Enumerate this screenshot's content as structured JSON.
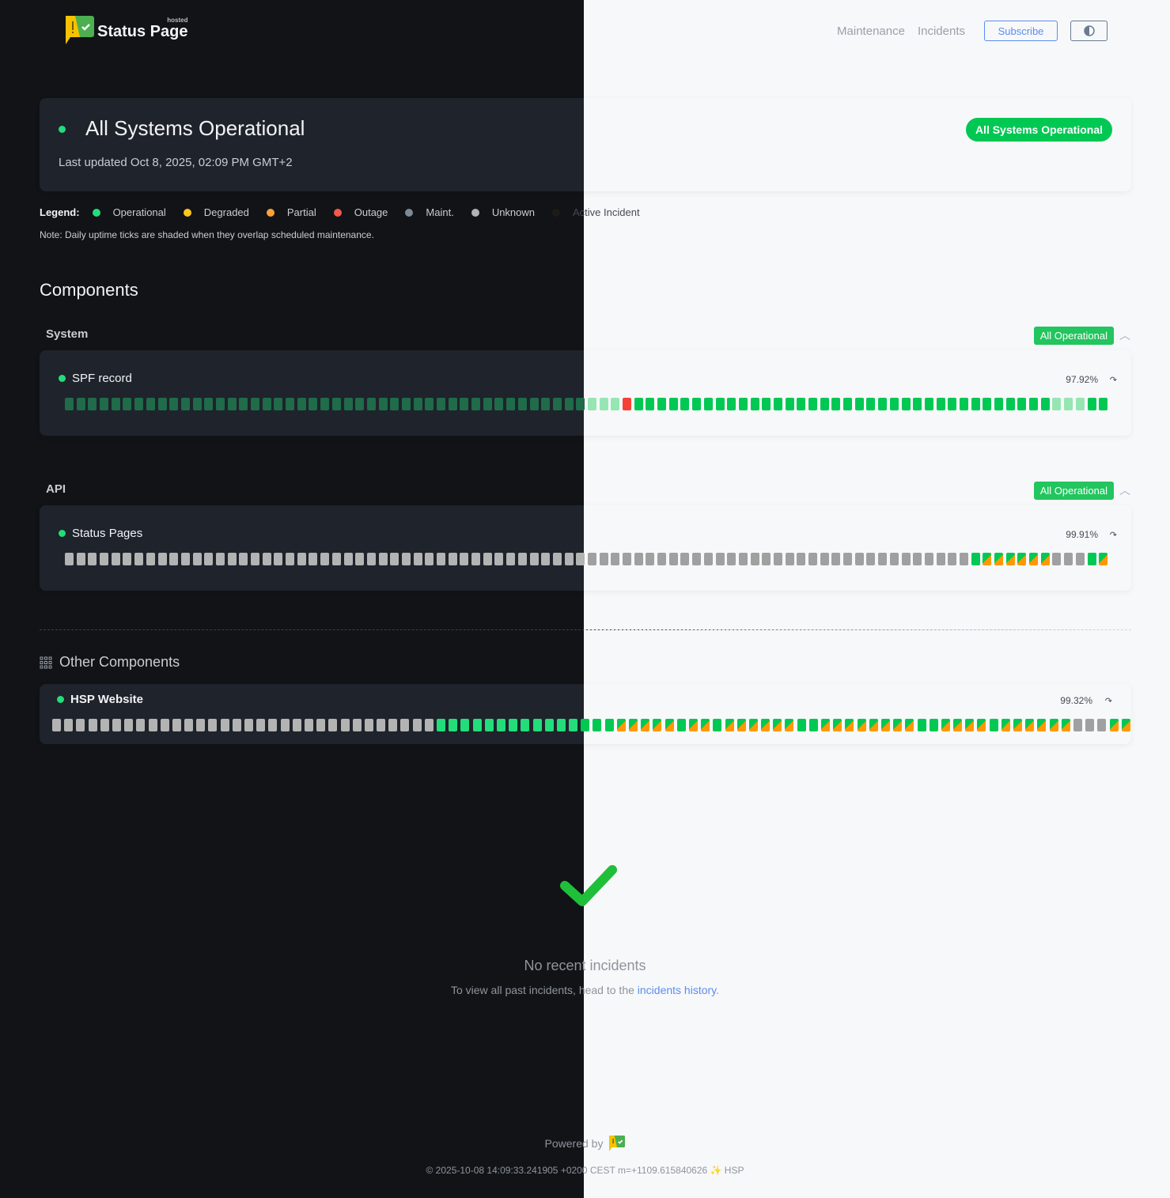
{
  "header": {
    "logo_text": "Status Page",
    "logo_sup": "hosted",
    "nav": [
      "Maintenance",
      "Incidents"
    ],
    "subscribe": "Subscribe",
    "theme_toggle_icon": "half-circle-icon"
  },
  "status": {
    "title": "All Systems Operational",
    "updated": "Last updated Oct 8, 2025, 02:09 PM GMT+2",
    "badge": "All Systems Operational"
  },
  "legend": {
    "label": "Legend:",
    "items": [
      {
        "label": "Operational",
        "color": "#22dd7a"
      },
      {
        "label": "Degraded",
        "color": "#f9c623"
      },
      {
        "label": "Partial",
        "color": "#ffa136"
      },
      {
        "label": "Outage",
        "color": "#f4574b"
      },
      {
        "label": "Maint.",
        "color": "#7b8a96"
      },
      {
        "label": "Unknown",
        "color": "#b3b3b3"
      },
      {
        "label": "Active Incident",
        "color": "#1e1b17"
      }
    ],
    "note": "Note: Daily uptime ticks are shaded when they overlap scheduled maintenance."
  },
  "components_title": "Components",
  "groups": [
    {
      "name": "System",
      "badge": "All Operational",
      "components": [
        {
          "name": "SPF record",
          "uptime": "97.92%",
          "days": [
            {
              "status": "shaded",
              "count": 48
            },
            {
              "status": "outage",
              "count": 1
            },
            {
              "status": "operational",
              "count": 36
            },
            {
              "status": "shaded",
              "count": 3
            },
            {
              "status": "operational",
              "count": 2
            }
          ]
        }
      ]
    },
    {
      "name": "API",
      "badge": "All Operational",
      "components": [
        {
          "name": "Status Pages",
          "uptime": "99.91%",
          "days": [
            {
              "status": "unknown",
              "count": 78
            },
            {
              "status": "operational",
              "count": 1
            },
            {
              "status": "partial",
              "count": 6
            },
            {
              "status": "unknown",
              "count": 3
            },
            {
              "status": "operational",
              "count": 1
            },
            {
              "status": "partial",
              "count": 1
            }
          ]
        }
      ]
    }
  ],
  "other": {
    "title": "Other Components",
    "components": [
      {
        "name": "HSP Website",
        "uptime": "99.32%",
        "days": [
          {
            "status": "unknown",
            "count": 32
          },
          {
            "status": "operational",
            "count": 15
          },
          {
            "status": "partial",
            "count": 5
          },
          {
            "status": "operational",
            "count": 1
          },
          {
            "status": "partial",
            "count": 2
          },
          {
            "status": "operational",
            "count": 1
          },
          {
            "status": "partial",
            "count": 6
          },
          {
            "status": "operational",
            "count": 2
          },
          {
            "status": "partial",
            "count": 8
          },
          {
            "status": "operational",
            "count": 2
          },
          {
            "status": "partial",
            "count": 4
          },
          {
            "status": "operational",
            "count": 1
          },
          {
            "status": "partial",
            "count": 6
          },
          {
            "status": "unknown",
            "count": 3
          },
          {
            "status": "partial",
            "count": 2
          }
        ]
      }
    ]
  },
  "incidents": {
    "title": "No recent incidents",
    "sub_prefix": "To view all past incidents, head to the ",
    "link": "incidents history",
    "sub_suffix": "."
  },
  "footer": {
    "powered": "Powered by",
    "copyright": "© 2025-10-08 14:09:33.241905 +0200 CEST m=+1109.615840626 ✨ HSP"
  }
}
